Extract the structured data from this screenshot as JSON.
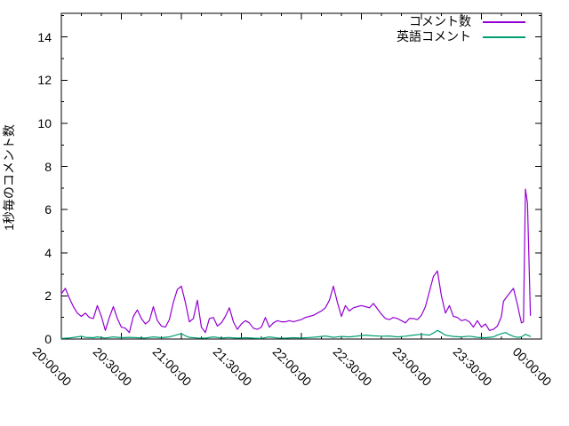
{
  "chart_data": {
    "type": "line",
    "title": "",
    "xlabel": "",
    "ylabel": "1秒毎のコメント数",
    "x_tick_labels": [
      "20:00:00",
      "20:30:00",
      "21:00:00",
      "21:30:00",
      "22:00:00",
      "22:30:00",
      "23:00:00",
      "23:30:00",
      "00:00:00"
    ],
    "x_major_interval_minutes": 30,
    "x_minor_interval_minutes": 10,
    "x_range_minutes": [
      0,
      240
    ],
    "ylim": [
      0,
      15.1
    ],
    "y_ticks": [
      0,
      2,
      4,
      6,
      8,
      10,
      12,
      14
    ],
    "y_minor_interval": 1,
    "grid": false,
    "legend_position": "top-right-inside",
    "border_color": "#000000",
    "series": [
      {
        "name": "コメント数",
        "color": "#9400d3",
        "points_minutes_value": [
          [
            0,
            2.1
          ],
          [
            2,
            2.35
          ],
          [
            4,
            1.9
          ],
          [
            6,
            1.5
          ],
          [
            8,
            1.2
          ],
          [
            10,
            1.05
          ],
          [
            12,
            1.2
          ],
          [
            14,
            1.0
          ],
          [
            16,
            0.95
          ],
          [
            18,
            1.55
          ],
          [
            20,
            1.05
          ],
          [
            22,
            0.4
          ],
          [
            24,
            1.0
          ],
          [
            26,
            1.5
          ],
          [
            28,
            0.95
          ],
          [
            30,
            0.55
          ],
          [
            32,
            0.5
          ],
          [
            34,
            0.3
          ],
          [
            36,
            1.05
          ],
          [
            38,
            1.35
          ],
          [
            40,
            0.95
          ],
          [
            42,
            0.7
          ],
          [
            44,
            0.85
          ],
          [
            46,
            1.5
          ],
          [
            48,
            0.85
          ],
          [
            50,
            0.6
          ],
          [
            52,
            0.55
          ],
          [
            54,
            0.9
          ],
          [
            56,
            1.7
          ],
          [
            58,
            2.3
          ],
          [
            60,
            2.45
          ],
          [
            62,
            1.7
          ],
          [
            64,
            0.8
          ],
          [
            66,
            0.95
          ],
          [
            68,
            1.8
          ],
          [
            70,
            0.55
          ],
          [
            72,
            0.3
          ],
          [
            74,
            0.95
          ],
          [
            76,
            1.0
          ],
          [
            78,
            0.6
          ],
          [
            80,
            0.75
          ],
          [
            82,
            1.05
          ],
          [
            84,
            1.45
          ],
          [
            86,
            0.8
          ],
          [
            88,
            0.45
          ],
          [
            90,
            0.7
          ],
          [
            92,
            0.85
          ],
          [
            94,
            0.75
          ],
          [
            96,
            0.5
          ],
          [
            98,
            0.45
          ],
          [
            100,
            0.55
          ],
          [
            102,
            1.0
          ],
          [
            104,
            0.55
          ],
          [
            106,
            0.75
          ],
          [
            108,
            0.85
          ],
          [
            110,
            0.8
          ],
          [
            112,
            0.8
          ],
          [
            114,
            0.85
          ],
          [
            116,
            0.8
          ],
          [
            118,
            0.85
          ],
          [
            120,
            0.9
          ],
          [
            122,
            1.0
          ],
          [
            124,
            1.05
          ],
          [
            126,
            1.1
          ],
          [
            128,
            1.2
          ],
          [
            130,
            1.3
          ],
          [
            132,
            1.45
          ],
          [
            134,
            1.8
          ],
          [
            136,
            2.45
          ],
          [
            138,
            1.7
          ],
          [
            140,
            1.05
          ],
          [
            142,
            1.55
          ],
          [
            144,
            1.3
          ],
          [
            146,
            1.45
          ],
          [
            148,
            1.5
          ],
          [
            150,
            1.55
          ],
          [
            152,
            1.5
          ],
          [
            154,
            1.45
          ],
          [
            156,
            1.65
          ],
          [
            158,
            1.4
          ],
          [
            160,
            1.15
          ],
          [
            162,
            0.95
          ],
          [
            164,
            0.9
          ],
          [
            166,
            1.0
          ],
          [
            168,
            0.95
          ],
          [
            170,
            0.85
          ],
          [
            172,
            0.75
          ],
          [
            174,
            0.95
          ],
          [
            176,
            0.95
          ],
          [
            178,
            0.9
          ],
          [
            180,
            1.1
          ],
          [
            182,
            1.5
          ],
          [
            184,
            2.2
          ],
          [
            186,
            2.9
          ],
          [
            188,
            3.15
          ],
          [
            190,
            2.0
          ],
          [
            192,
            1.2
          ],
          [
            194,
            1.55
          ],
          [
            196,
            1.05
          ],
          [
            198,
            1.0
          ],
          [
            200,
            0.85
          ],
          [
            202,
            0.9
          ],
          [
            204,
            0.8
          ],
          [
            206,
            0.55
          ],
          [
            208,
            0.85
          ],
          [
            210,
            0.55
          ],
          [
            212,
            0.7
          ],
          [
            214,
            0.4
          ],
          [
            216,
            0.45
          ],
          [
            218,
            0.6
          ],
          [
            220,
            1.05
          ],
          [
            221,
            1.75
          ],
          [
            223,
            2.0
          ],
          [
            226,
            2.35
          ],
          [
            228,
            1.6
          ],
          [
            229,
            1.15
          ],
          [
            230,
            0.75
          ],
          [
            231,
            0.8
          ],
          [
            232,
            6.95
          ],
          [
            233,
            6.3
          ],
          [
            234.5,
            1.1
          ]
        ]
      },
      {
        "name": "英語コメント",
        "color": "#009e73",
        "points_minutes_value": [
          [
            0,
            0.03
          ],
          [
            4,
            0.05
          ],
          [
            8,
            0.1
          ],
          [
            10,
            0.13
          ],
          [
            12,
            0.08
          ],
          [
            16,
            0.06
          ],
          [
            18,
            0.1
          ],
          [
            22,
            0.05
          ],
          [
            26,
            0.1
          ],
          [
            30,
            0.06
          ],
          [
            34,
            0.08
          ],
          [
            38,
            0.06
          ],
          [
            42,
            0.05
          ],
          [
            46,
            0.1
          ],
          [
            50,
            0.06
          ],
          [
            54,
            0.1
          ],
          [
            56,
            0.15
          ],
          [
            58,
            0.2
          ],
          [
            60,
            0.25
          ],
          [
            62,
            0.15
          ],
          [
            64,
            0.08
          ],
          [
            68,
            0.05
          ],
          [
            72,
            0.04
          ],
          [
            76,
            0.1
          ],
          [
            80,
            0.05
          ],
          [
            84,
            0.07
          ],
          [
            88,
            0.04
          ],
          [
            92,
            0.06
          ],
          [
            96,
            0.04
          ],
          [
            100,
            0.03
          ],
          [
            104,
            0.1
          ],
          [
            108,
            0.05
          ],
          [
            112,
            0.04
          ],
          [
            116,
            0.06
          ],
          [
            120,
            0.05
          ],
          [
            124,
            0.07
          ],
          [
            128,
            0.1
          ],
          [
            132,
            0.14
          ],
          [
            136,
            0.08
          ],
          [
            140,
            0.12
          ],
          [
            144,
            0.1
          ],
          [
            148,
            0.14
          ],
          [
            152,
            0.18
          ],
          [
            156,
            0.15
          ],
          [
            160,
            0.13
          ],
          [
            164,
            0.14
          ],
          [
            168,
            0.1
          ],
          [
            172,
            0.13
          ],
          [
            176,
            0.18
          ],
          [
            180,
            0.22
          ],
          [
            184,
            0.18
          ],
          [
            186,
            0.28
          ],
          [
            188,
            0.4
          ],
          [
            190,
            0.3
          ],
          [
            192,
            0.18
          ],
          [
            196,
            0.12
          ],
          [
            200,
            0.1
          ],
          [
            204,
            0.13
          ],
          [
            208,
            0.08
          ],
          [
            212,
            0.06
          ],
          [
            216,
            0.1
          ],
          [
            218,
            0.18
          ],
          [
            220,
            0.25
          ],
          [
            222,
            0.3
          ],
          [
            224,
            0.2
          ],
          [
            226,
            0.12
          ],
          [
            228,
            0.08
          ],
          [
            230,
            0.1
          ],
          [
            232,
            0.22
          ],
          [
            234.5,
            0.12
          ]
        ]
      }
    ]
  }
}
